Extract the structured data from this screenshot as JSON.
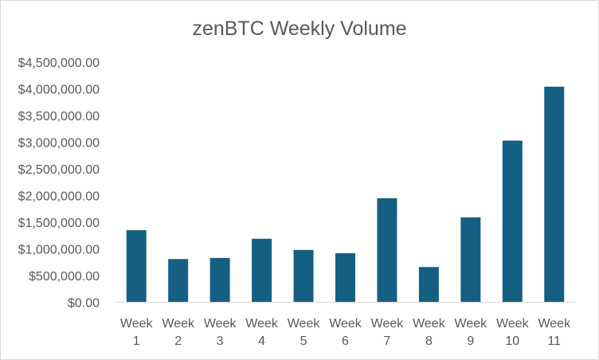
{
  "chart_data": {
    "type": "bar",
    "title": "zenBTC Weekly Volume",
    "xlabel": "",
    "ylabel": "",
    "categories": [
      [
        "Week",
        "1"
      ],
      [
        "Week",
        "2"
      ],
      [
        "Week",
        "3"
      ],
      [
        "Week",
        "4"
      ],
      [
        "Week",
        "5"
      ],
      [
        "Week",
        "6"
      ],
      [
        "Week",
        "7"
      ],
      [
        "Week",
        "8"
      ],
      [
        "Week",
        "9"
      ],
      [
        "Week",
        "10"
      ],
      [
        "Week",
        "11"
      ]
    ],
    "values": [
      1350000,
      810000,
      830000,
      1190000,
      980000,
      920000,
      1950000,
      660000,
      1590000,
      3030000,
      4040000
    ],
    "ylim": [
      0,
      4500000
    ],
    "yticks": [
      0,
      500000,
      1000000,
      1500000,
      2000000,
      2500000,
      3000000,
      3500000,
      4000000,
      4500000
    ],
    "ytick_labels": [
      "$0.00",
      "$500,000.00",
      "$1,000,000.00",
      "$1,500,000.00",
      "$2,000,000.00",
      "$2,500,000.00",
      "$3,000,000.00",
      "$3,500,000.00",
      "$4,000,000.00",
      "$4,500,000.00"
    ],
    "grid": false,
    "legend": "none",
    "colors": {
      "bar": "#156082",
      "text": "#595959",
      "axis": "#d9d9d9"
    }
  }
}
